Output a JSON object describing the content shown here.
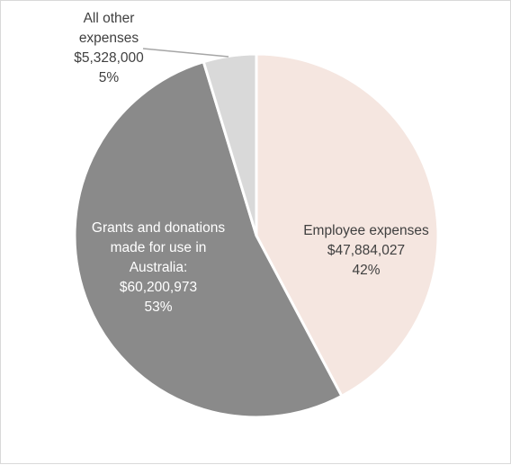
{
  "chart_data": {
    "type": "pie",
    "slices": [
      {
        "name": "Employee expenses",
        "label_lines": [
          "Employee expenses",
          "$47,884,027",
          "42%"
        ],
        "value": 47884027,
        "percent": 42,
        "color": "#f5e6e0",
        "label_color": "#404040"
      },
      {
        "name": "Grants and donations made for use in Australia",
        "label_lines": [
          "Grants and donations",
          "made for use in",
          "Australia:",
          "$60,200,973",
          "53%"
        ],
        "value": 60200973,
        "percent": 53,
        "color": "#8a8a8a",
        "label_color": "#ffffff"
      },
      {
        "name": "All other expenses",
        "label_lines": [
          "All other",
          "expenses",
          "$5,328,000",
          "5%"
        ],
        "value": 5328000,
        "percent": 5,
        "color": "#d9d9d9",
        "label_color": "#404040"
      }
    ],
    "start_angle_deg": 0,
    "direction": "clockwise",
    "slice_border_color": "#ffffff",
    "leader_line_color": "#a6a6a6"
  }
}
